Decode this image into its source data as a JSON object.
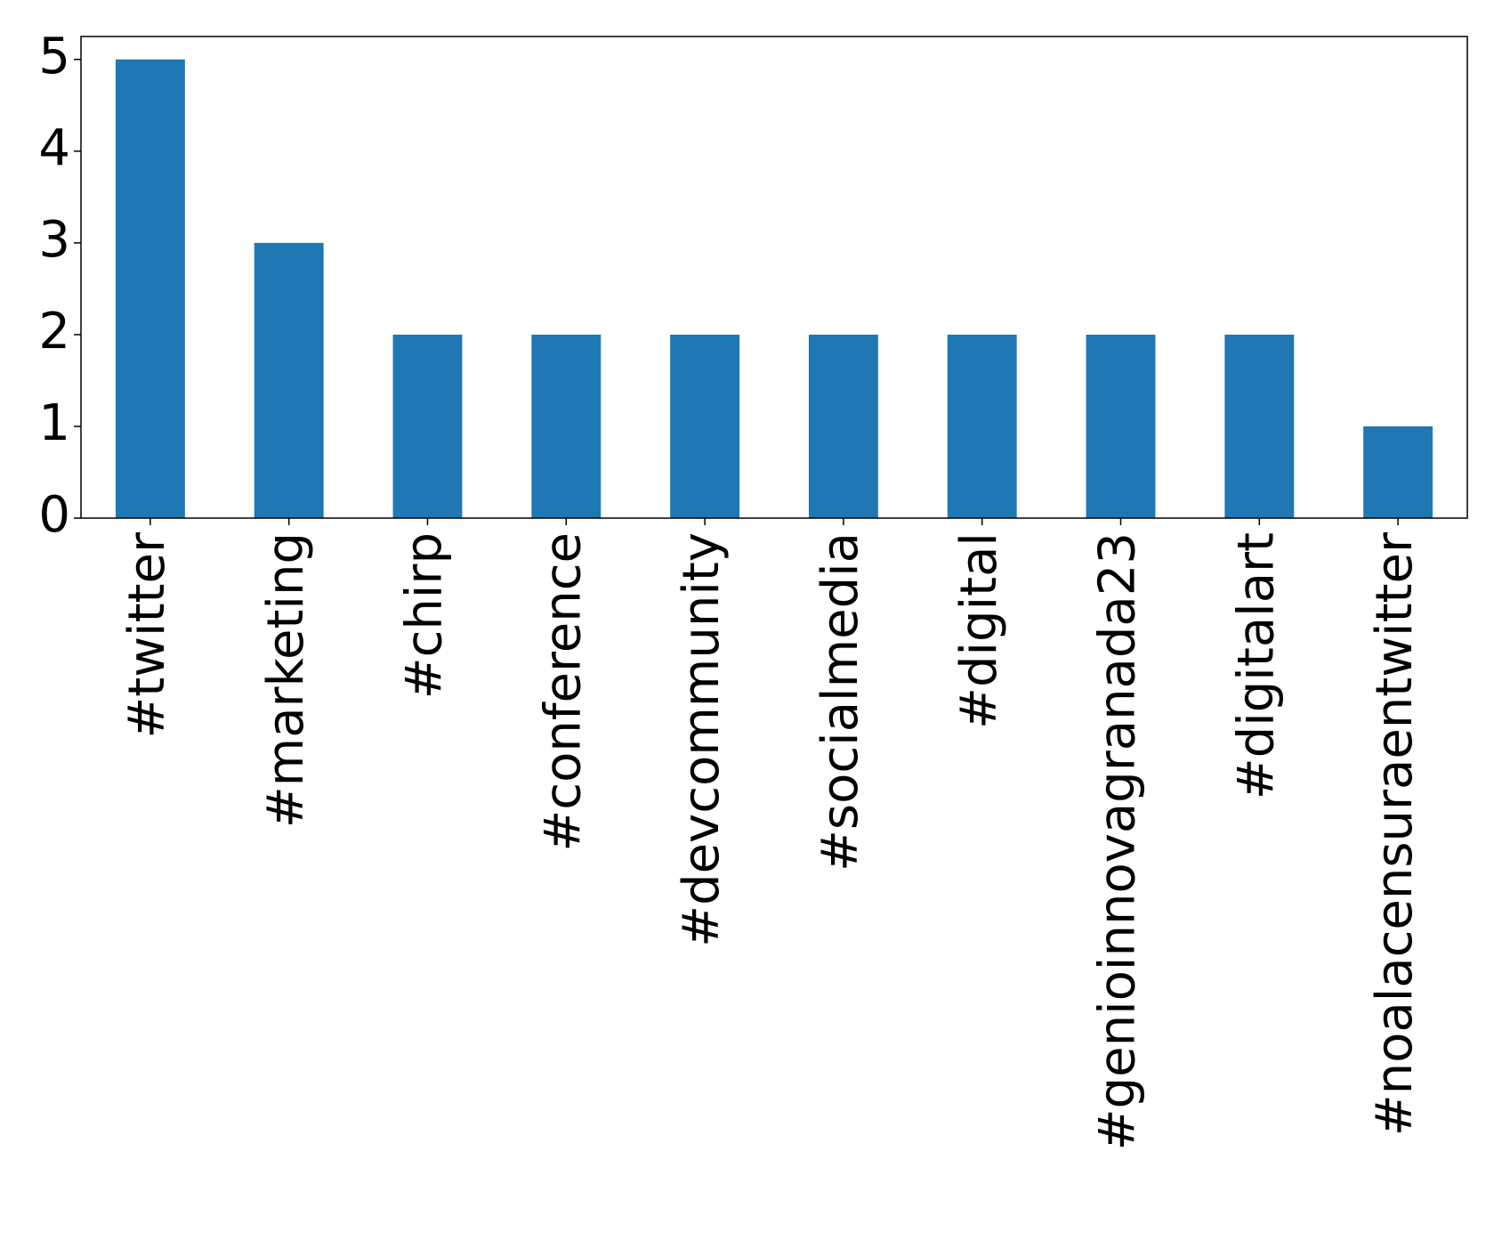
{
  "chart_data": {
    "type": "bar",
    "categories": [
      "#twitter",
      "#marketing",
      "#chirp",
      "#conference",
      "#devcommunity",
      "#socialmedia",
      "#digital",
      "#genioinnovagranada23",
      "#digitalart",
      "#noalacensuraentwitter"
    ],
    "values": [
      5,
      3,
      2,
      2,
      2,
      2,
      2,
      2,
      2,
      1
    ],
    "color": "#1f77b4",
    "ylim": [
      0,
      5.25
    ],
    "yticks": [
      0,
      1,
      2,
      3,
      4,
      5
    ],
    "grid": false
  }
}
